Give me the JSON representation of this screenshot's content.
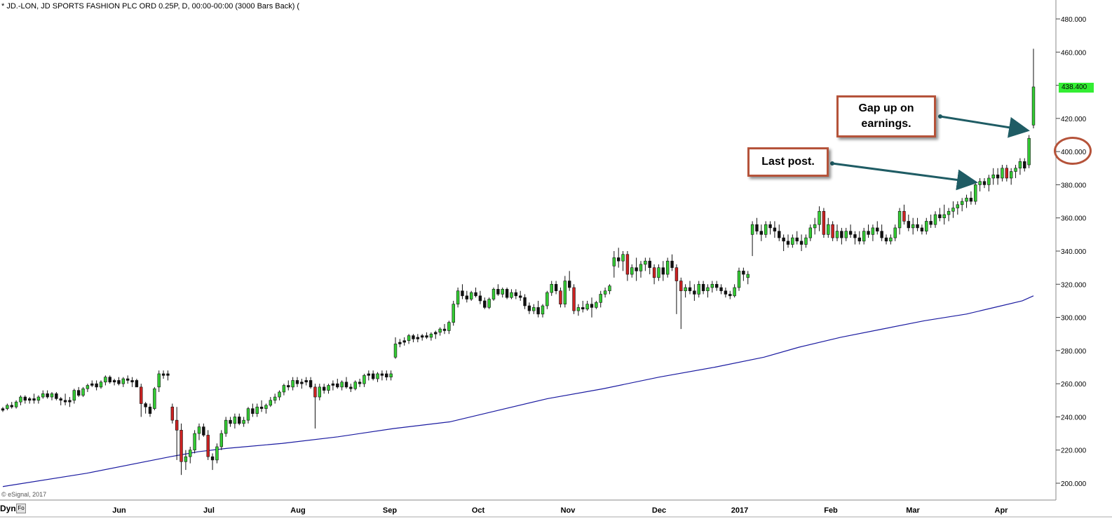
{
  "header": {
    "title": "* JD.-LON, JD SPORTS FASHION PLC ORD 0.25P, D, 00:00-00:00 (3000 Bars Back) ("
  },
  "footer": {
    "copyright": "© eSignal, 2017",
    "dyn_label": "Dyn",
    "dyn_button": "Fo"
  },
  "annotations": {
    "gap_up": "Gap up on earnings.",
    "last_post": "Last post.",
    "last_price": "438.400"
  },
  "colors": {
    "up_candle": "#33cc33",
    "down_candle": "#cc2222",
    "neutral_candle": "#111111",
    "moving_average": "#1a1aa0",
    "callout_border": "#b5533a",
    "arrow": "#1f5c64",
    "last_price_bg": "#33ee33"
  },
  "chart_data": {
    "type": "candlestick",
    "title": "* JD.-LON, JD SPORTS FASHION PLC ORD 0.25P, D, 00:00-00:00 (3000 Bars Back) (",
    "ylim": [
      190,
      490
    ],
    "y_ticks": [
      "200.000",
      "220.000",
      "240.000",
      "260.000",
      "280.000",
      "300.000",
      "320.000",
      "340.000",
      "360.000",
      "380.000",
      "400.000",
      "420.000",
      "440.000",
      "460.000",
      "480.000"
    ],
    "x_labels": [
      "Jun",
      "Jul",
      "Aug",
      "Sep",
      "Oct",
      "Nov",
      "Dec",
      "2017",
      "Feb",
      "Mar",
      "Apr"
    ],
    "ohlc": [
      [
        244,
        246,
        243,
        245
      ],
      [
        245,
        248,
        244,
        247
      ],
      [
        247,
        249,
        245,
        246
      ],
      [
        246,
        250,
        245,
        249
      ],
      [
        249,
        253,
        247,
        252
      ],
      [
        252,
        253,
        248,
        250
      ],
      [
        250,
        252,
        248,
        251
      ],
      [
        251,
        254,
        248,
        250
      ],
      [
        250,
        253,
        248,
        252
      ],
      [
        252,
        256,
        251,
        254
      ],
      [
        254,
        256,
        251,
        252
      ],
      [
        252,
        255,
        250,
        254
      ],
      [
        254,
        255,
        250,
        251
      ],
      [
        251,
        252,
        247,
        250
      ],
      [
        250,
        254,
        247,
        249
      ],
      [
        249,
        252,
        246,
        250
      ],
      [
        250,
        257,
        248,
        256
      ],
      [
        256,
        258,
        252,
        253
      ],
      [
        253,
        258,
        252,
        257
      ],
      [
        257,
        260,
        255,
        259
      ],
      [
        259,
        262,
        258,
        260
      ],
      [
        260,
        262,
        256,
        258
      ],
      [
        258,
        262,
        257,
        261
      ],
      [
        261,
        265,
        259,
        264
      ],
      [
        264,
        265,
        260,
        261
      ],
      [
        261,
        263,
        259,
        262
      ],
      [
        262,
        264,
        259,
        260
      ],
      [
        260,
        264,
        258,
        263
      ],
      [
        263,
        265,
        260,
        262
      ],
      [
        262,
        264,
        258,
        261
      ],
      [
        262,
        263,
        258,
        258
      ],
      [
        258,
        260,
        240,
        248
      ],
      [
        248,
        249,
        242,
        246
      ],
      [
        246,
        248,
        240,
        242
      ],
      [
        245,
        258,
        244,
        257
      ],
      [
        258,
        268,
        255,
        266
      ],
      [
        266,
        268,
        263,
        265
      ],
      [
        265,
        268,
        262,
        266
      ],
      [
        246,
        248,
        236,
        238
      ],
      [
        238,
        246,
        214,
        232
      ],
      [
        232,
        236,
        205,
        213
      ],
      [
        213,
        220,
        208,
        216
      ],
      [
        216,
        222,
        212,
        220
      ],
      [
        220,
        232,
        218,
        230
      ],
      [
        230,
        236,
        226,
        234
      ],
      [
        234,
        236,
        228,
        229
      ],
      [
        229,
        232,
        214,
        216
      ],
      [
        216,
        218,
        208,
        214
      ],
      [
        214,
        224,
        212,
        222
      ],
      [
        222,
        232,
        220,
        230
      ],
      [
        230,
        240,
        228,
        238
      ],
      [
        238,
        240,
        234,
        236
      ],
      [
        236,
        242,
        233,
        240
      ],
      [
        240,
        242,
        235,
        236
      ],
      [
        236,
        240,
        234,
        238
      ],
      [
        238,
        246,
        236,
        245
      ],
      [
        245,
        248,
        240,
        242
      ],
      [
        242,
        248,
        240,
        246
      ],
      [
        246,
        250,
        243,
        245
      ],
      [
        245,
        248,
        242,
        247
      ],
      [
        247,
        252,
        246,
        250
      ],
      [
        250,
        254,
        248,
        252
      ],
      [
        252,
        256,
        250,
        255
      ],
      [
        255,
        260,
        253,
        259
      ],
      [
        259,
        262,
        256,
        258
      ],
      [
        258,
        264,
        256,
        262
      ],
      [
        262,
        264,
        258,
        260
      ],
      [
        260,
        263,
        257,
        261
      ],
      [
        261,
        264,
        259,
        262
      ],
      [
        262,
        264,
        257,
        258
      ],
      [
        258,
        260,
        233,
        252
      ],
      [
        252,
        260,
        250,
        258
      ],
      [
        258,
        260,
        254,
        256
      ],
      [
        256,
        260,
        254,
        259
      ],
      [
        259,
        262,
        256,
        260
      ],
      [
        260,
        263,
        257,
        258
      ],
      [
        258,
        262,
        256,
        261
      ],
      [
        261,
        264,
        257,
        258
      ],
      [
        258,
        260,
        255,
        257
      ],
      [
        257,
        262,
        256,
        261
      ],
      [
        261,
        263,
        258,
        260
      ],
      [
        260,
        266,
        258,
        265
      ],
      [
        265,
        268,
        262,
        266
      ],
      [
        266,
        268,
        262,
        263
      ],
      [
        263,
        267,
        261,
        266
      ],
      [
        266,
        268,
        262,
        265
      ],
      [
        266,
        268,
        262,
        264
      ],
      [
        264,
        268,
        262,
        266
      ],
      [
        276,
        288,
        275,
        284
      ],
      [
        284,
        287,
        282,
        285
      ],
      [
        285,
        288,
        283,
        286
      ],
      [
        286,
        290,
        284,
        289
      ],
      [
        289,
        290,
        285,
        287
      ],
      [
        287,
        290,
        285,
        288
      ],
      [
        288,
        290,
        286,
        289
      ],
      [
        289,
        291,
        287,
        288
      ],
      [
        288,
        291,
        286,
        290
      ],
      [
        290,
        292,
        287,
        291
      ],
      [
        291,
        294,
        289,
        293
      ],
      [
        293,
        296,
        290,
        292
      ],
      [
        292,
        298,
        290,
        297
      ],
      [
        297,
        310,
        295,
        308
      ],
      [
        308,
        318,
        306,
        316
      ],
      [
        316,
        320,
        311,
        313
      ],
      [
        313,
        316,
        309,
        311
      ],
      [
        311,
        316,
        310,
        315
      ],
      [
        315,
        318,
        312,
        313
      ],
      [
        313,
        316,
        308,
        310
      ],
      [
        310,
        312,
        305,
        306
      ],
      [
        306,
        312,
        305,
        311
      ],
      [
        311,
        318,
        310,
        317
      ],
      [
        317,
        320,
        313,
        314
      ],
      [
        314,
        318,
        312,
        317
      ],
      [
        317,
        318,
        311,
        312
      ],
      [
        312,
        317,
        311,
        315
      ],
      [
        315,
        317,
        311,
        313
      ],
      [
        313,
        316,
        310,
        312
      ],
      [
        312,
        314,
        305,
        307
      ],
      [
        307,
        309,
        302,
        304
      ],
      [
        304,
        308,
        302,
        306
      ],
      [
        306,
        310,
        300,
        302
      ],
      [
        302,
        308,
        300,
        307
      ],
      [
        307,
        316,
        305,
        315
      ],
      [
        315,
        322,
        313,
        320
      ],
      [
        320,
        322,
        314,
        316
      ],
      [
        316,
        318,
        306,
        308
      ],
      [
        308,
        325,
        306,
        322
      ],
      [
        322,
        328,
        316,
        318
      ],
      [
        318,
        320,
        302,
        304
      ],
      [
        304,
        308,
        301,
        306
      ],
      [
        306,
        310,
        303,
        305
      ],
      [
        305,
        310,
        304,
        308
      ],
      [
        308,
        312,
        300,
        306
      ],
      [
        306,
        310,
        305,
        309
      ],
      [
        309,
        316,
        306,
        314
      ],
      [
        314,
        318,
        312,
        316
      ],
      [
        316,
        320,
        314,
        319
      ],
      [
        331,
        340,
        324,
        336
      ],
      [
        336,
        342,
        330,
        334
      ],
      [
        334,
        340,
        328,
        338
      ],
      [
        338,
        340,
        322,
        326
      ],
      [
        326,
        332,
        324,
        330
      ],
      [
        330,
        336,
        322,
        328
      ],
      [
        328,
        334,
        324,
        332
      ],
      [
        332,
        336,
        328,
        334
      ],
      [
        334,
        336,
        326,
        330
      ],
      [
        330,
        332,
        320,
        324
      ],
      [
        324,
        332,
        322,
        330
      ],
      [
        330,
        334,
        322,
        326
      ],
      [
        326,
        336,
        324,
        334
      ],
      [
        334,
        338,
        328,
        330
      ],
      [
        330,
        332,
        302,
        322
      ],
      [
        322,
        324,
        293,
        316
      ],
      [
        316,
        320,
        312,
        318
      ],
      [
        318,
        322,
        314,
        316
      ],
      [
        316,
        320,
        310,
        314
      ],
      [
        314,
        322,
        312,
        320
      ],
      [
        320,
        322,
        314,
        316
      ],
      [
        316,
        320,
        312,
        318
      ],
      [
        318,
        322,
        315,
        320
      ],
      [
        320,
        322,
        316,
        318
      ],
      [
        318,
        320,
        314,
        316
      ],
      [
        316,
        318,
        312,
        314
      ],
      [
        314,
        316,
        311,
        313
      ],
      [
        313,
        320,
        312,
        318
      ],
      [
        318,
        330,
        316,
        328
      ],
      [
        328,
        330,
        322,
        326
      ],
      [
        324,
        328,
        320,
        326
      ],
      [
        350,
        358,
        337,
        356
      ],
      [
        356,
        360,
        350,
        352
      ],
      [
        352,
        356,
        346,
        350
      ],
      [
        350,
        358,
        348,
        356
      ],
      [
        356,
        358,
        350,
        354
      ],
      [
        354,
        358,
        348,
        352
      ],
      [
        352,
        356,
        346,
        348
      ],
      [
        348,
        350,
        340,
        346
      ],
      [
        346,
        350,
        342,
        344
      ],
      [
        344,
        350,
        342,
        348
      ],
      [
        348,
        352,
        344,
        346
      ],
      [
        346,
        350,
        340,
        344
      ],
      [
        344,
        350,
        342,
        348
      ],
      [
        348,
        356,
        346,
        354
      ],
      [
        354,
        360,
        350,
        356
      ],
      [
        356,
        367,
        352,
        364
      ],
      [
        364,
        366,
        348,
        350
      ],
      [
        350,
        360,
        348,
        356
      ],
      [
        356,
        358,
        346,
        348
      ],
      [
        348,
        356,
        346,
        352
      ],
      [
        352,
        354,
        344,
        348
      ],
      [
        348,
        354,
        346,
        352
      ],
      [
        352,
        356,
        348,
        350
      ],
      [
        350,
        352,
        344,
        348
      ],
      [
        348,
        352,
        344,
        346
      ],
      [
        346,
        354,
        344,
        352
      ],
      [
        352,
        356,
        348,
        350
      ],
      [
        350,
        356,
        346,
        354
      ],
      [
        354,
        358,
        350,
        352
      ],
      [
        352,
        356,
        346,
        348
      ],
      [
        348,
        350,
        344,
        346
      ],
      [
        346,
        350,
        344,
        348
      ],
      [
        348,
        356,
        346,
        354
      ],
      [
        354,
        366,
        350,
        364
      ],
      [
        364,
        368,
        356,
        358
      ],
      [
        358,
        362,
        352,
        354
      ],
      [
        354,
        360,
        350,
        356
      ],
      [
        356,
        360,
        352,
        354
      ],
      [
        354,
        356,
        350,
        352
      ],
      [
        352,
        360,
        350,
        358
      ],
      [
        358,
        362,
        354,
        356
      ],
      [
        356,
        364,
        354,
        362
      ],
      [
        362,
        366,
        358,
        360
      ],
      [
        360,
        368,
        356,
        362
      ],
      [
        362,
        366,
        358,
        364
      ],
      [
        364,
        370,
        360,
        366
      ],
      [
        366,
        370,
        362,
        368
      ],
      [
        368,
        372,
        364,
        370
      ],
      [
        370,
        374,
        366,
        372
      ],
      [
        372,
        376,
        368,
        370
      ],
      [
        370,
        382,
        368,
        380
      ],
      [
        380,
        384,
        376,
        382
      ],
      [
        382,
        384,
        378,
        380
      ],
      [
        380,
        386,
        376,
        384
      ],
      [
        384,
        390,
        380,
        386
      ],
      [
        386,
        390,
        380,
        384
      ],
      [
        384,
        392,
        382,
        390
      ],
      [
        390,
        392,
        382,
        384
      ],
      [
        384,
        390,
        380,
        388
      ],
      [
        388,
        392,
        384,
        390
      ],
      [
        390,
        396,
        386,
        394
      ],
      [
        394,
        396,
        388,
        390
      ],
      [
        392,
        410,
        390,
        408
      ],
      [
        416,
        462,
        414,
        439
      ]
    ],
    "moving_average": [
      [
        0,
        198
      ],
      [
        120,
        206
      ],
      [
        240,
        216
      ],
      [
        280,
        219
      ],
      [
        320,
        221
      ],
      [
        400,
        224
      ],
      [
        480,
        228
      ],
      [
        560,
        233
      ],
      [
        640,
        237
      ],
      [
        700,
        243
      ],
      [
        780,
        251
      ],
      [
        860,
        257
      ],
      [
        940,
        264
      ],
      [
        1020,
        270
      ],
      [
        1090,
        276
      ],
      [
        1140,
        282
      ],
      [
        1200,
        288
      ],
      [
        1260,
        293
      ],
      [
        1320,
        298
      ],
      [
        1380,
        302
      ],
      [
        1420,
        306
      ],
      [
        1460,
        310
      ],
      [
        1476,
        313
      ]
    ]
  }
}
